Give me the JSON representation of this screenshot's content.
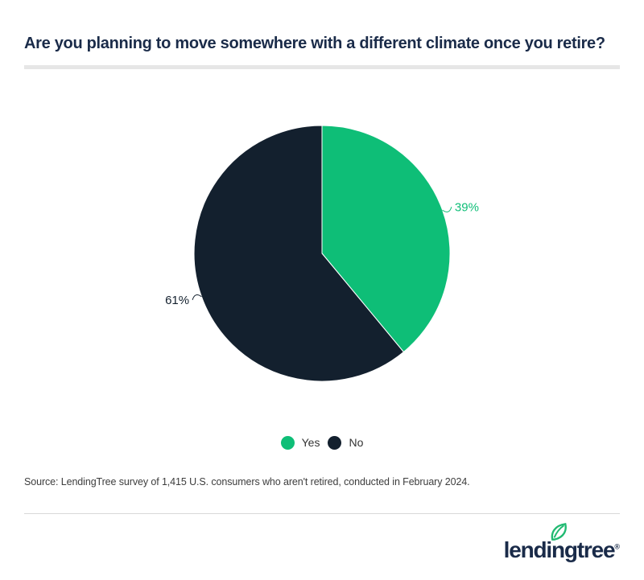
{
  "header": {
    "title_color": "#1a2b49",
    "underline_color": "#e6e6e6"
  },
  "chart_data": {
    "type": "pie",
    "title": "Are you planning to move somewhere with a different climate once you retire?",
    "series": [
      {
        "name": "Yes",
        "value": 39,
        "label": "39%",
        "color": "#0ebe77"
      },
      {
        "name": "No",
        "value": 61,
        "label": "61%",
        "color": "#13202e"
      }
    ],
    "start_angle_deg": 0,
    "direction": "clockwise",
    "data_labels": "outside-percent",
    "legend_position": "bottom-center",
    "slice_border_color": "#ffffff"
  },
  "source": {
    "text": "Source: LendingTree survey of 1,415 U.S. consumers who aren't retired, conducted in February 2024."
  },
  "footer": {
    "brand_name": "lendingtree",
    "registered_mark": "®",
    "brand_text_color": "#1a2b49",
    "brand_leaf_color": "#21ba72"
  }
}
